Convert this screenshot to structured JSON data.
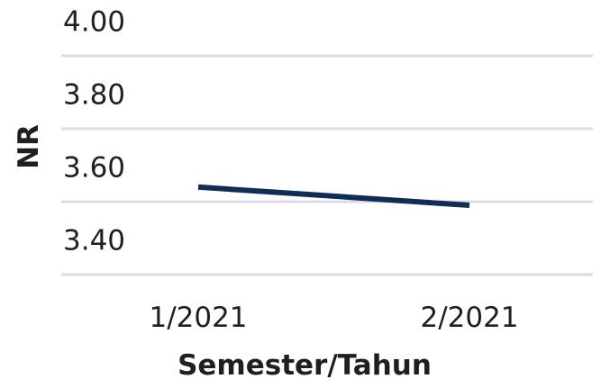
{
  "chart_data": {
    "type": "line",
    "title": "",
    "xlabel": "Semester/Tahun",
    "ylabel": "NR",
    "categories": [
      "1/2021",
      "2/2021"
    ],
    "series": [
      {
        "values": [
          3.54,
          3.49
        ],
        "color": "#0f2d57"
      }
    ],
    "ylim": [
      3.3,
      4.0
    ],
    "yticks": [
      3.4,
      3.6,
      3.8,
      4.0
    ],
    "ytick_labels": [
      "3.40",
      "3.60",
      "3.80",
      "4.00"
    ],
    "gridlines": [
      3.3,
      3.5,
      3.7,
      3.9
    ],
    "grid": true,
    "legend": "none",
    "grid_color": "#d9dce6",
    "text_color": "#1f1f1f"
  }
}
